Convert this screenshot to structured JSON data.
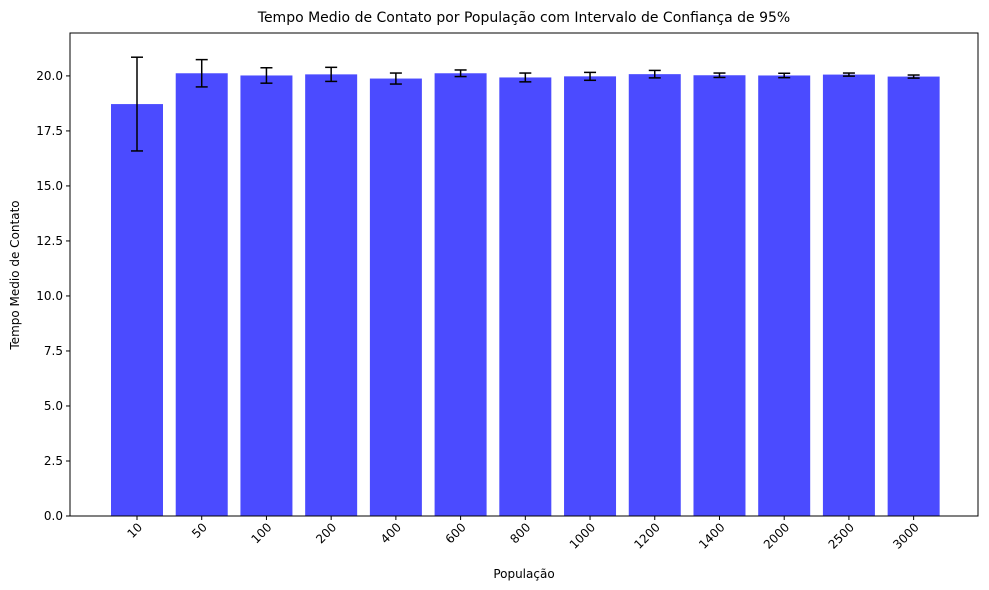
{
  "chart_data": {
    "type": "bar",
    "title": "Tempo Medio de Contato por População com Intervalo de Confiança de 95%",
    "xlabel": "População",
    "ylabel": "Tempo Medio de Contato",
    "categories": [
      "10",
      "50",
      "100",
      "200",
      "400",
      "600",
      "800",
      "1000",
      "1200",
      "1400",
      "2000",
      "2500",
      "3000"
    ],
    "values": [
      18.72,
      20.12,
      20.02,
      20.07,
      19.88,
      20.12,
      19.93,
      19.98,
      20.08,
      20.03,
      20.02,
      20.06,
      19.97
    ],
    "errors": [
      2.13,
      0.62,
      0.35,
      0.32,
      0.25,
      0.15,
      0.2,
      0.18,
      0.17,
      0.1,
      0.1,
      0.07,
      0.07
    ],
    "yticks": [
      "0.0",
      "2.5",
      "5.0",
      "7.5",
      "10.0",
      "12.5",
      "15.0",
      "17.5",
      "20.0"
    ],
    "ylim": [
      0,
      21.95
    ],
    "bar_color": "#4b4bff",
    "error_color": "#000000",
    "grid": false,
    "x_tick_rotation_deg": 45
  }
}
